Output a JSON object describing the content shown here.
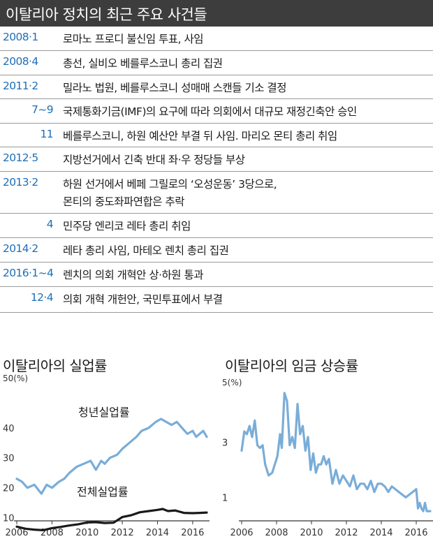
{
  "header": {
    "title": "이탈리아 정치의 최근 주요 사건들"
  },
  "timeline": [
    {
      "date": "2008·1",
      "indent": false,
      "lines": [
        "로마노 프로디 불신임 투표, 사임"
      ]
    },
    {
      "date": "2008·4",
      "indent": false,
      "lines": [
        "총선, 실비오 베를루스코니 총리 집권"
      ]
    },
    {
      "date": "2011·2",
      "indent": false,
      "lines": [
        "밀라노 법원, 베를루스코니 성매매 스캔들 기소 결정"
      ]
    },
    {
      "date": "7~9",
      "indent": true,
      "lines": [
        "국제통화기금(IMF)의 요구에 따라 의회에서 대규모 재정긴축안 승인"
      ]
    },
    {
      "date": "11",
      "indent": true,
      "lines": [
        "베를루스코니, 하원 예산안 부결 뒤 사임. 마리오 몬티 총리 취임"
      ]
    },
    {
      "date": "2012·5",
      "indent": false,
      "lines": [
        "지방선거에서 긴축 반대 좌·우 정당들 부상"
      ]
    },
    {
      "date": "2013·2",
      "indent": false,
      "lines": [
        "하원 선거에서 베페 그릴로의 ‘오성운동’ 3당으로,",
        "몬티의 중도좌파연합은 추락"
      ]
    },
    {
      "date": "4",
      "indent": true,
      "lines": [
        "민주당 엔리코 레타 총리 취임"
      ]
    },
    {
      "date": "2014·2",
      "indent": false,
      "lines": [
        "레타 총리 사임, 마테오 렌치 총리 집권"
      ]
    },
    {
      "date": "2016·1~4",
      "indent": false,
      "lines": [
        "렌치의 의회 개혁안 상·하원 통과"
      ]
    },
    {
      "date": "12·4",
      "indent": true,
      "lines": [
        "의회 개혁 개헌안, 국민투표에서 부결"
      ]
    }
  ],
  "colors": {
    "header_bg": "#3d3d3d",
    "date": "#1e6fb8",
    "youth_line": "#7aadd8",
    "total_line": "#1a1a1a",
    "wage_line": "#7aadd8"
  },
  "chart_data": [
    {
      "type": "line",
      "title": "이탈리아의 실업률",
      "y_unit": "50(%)",
      "ylim": [
        8,
        50
      ],
      "yticks": [
        10,
        20,
        30,
        40
      ],
      "xticks": [
        "2006",
        "2008",
        "2010",
        "2012",
        "2014",
        "2016"
      ],
      "xlim": [
        2006,
        2016.8
      ],
      "series": [
        {
          "name": "청년실업률",
          "x": [
            2006,
            2006.3,
            2006.6,
            2007,
            2007.4,
            2007.7,
            2008,
            2008.4,
            2008.7,
            2009,
            2009.4,
            2009.8,
            2010.2,
            2010.5,
            2010.8,
            2011,
            2011.3,
            2011.7,
            2012,
            2012.4,
            2012.8,
            2013.1,
            2013.5,
            2013.9,
            2014.2,
            2014.5,
            2014.8,
            2015.1,
            2015.4,
            2015.7,
            2016,
            2016.2,
            2016.4,
            2016.6,
            2016.8
          ],
          "values": [
            23,
            22,
            20,
            21,
            18,
            21,
            20,
            22,
            23,
            25,
            27,
            28,
            29,
            26,
            29,
            28,
            30,
            31,
            33,
            35,
            37,
            39,
            40,
            42,
            43,
            42,
            41,
            42,
            40,
            38,
            39,
            37,
            38,
            39,
            37
          ]
        },
        {
          "name": "전체실업률",
          "x": [
            2006,
            2006.5,
            2007,
            2007.5,
            2008,
            2008.5,
            2009,
            2009.5,
            2010,
            2010.5,
            2011,
            2011.5,
            2012,
            2012.5,
            2013,
            2013.5,
            2014,
            2014.3,
            2014.6,
            2015,
            2015.5,
            2016,
            2016.4,
            2016.8
          ],
          "values": [
            7,
            6.3,
            6,
            5.8,
            6.5,
            6.9,
            7.4,
            7.8,
            8.4,
            8.5,
            8.2,
            8.3,
            10.2,
            10.8,
            11.8,
            12.2,
            12.6,
            12.9,
            12.2,
            12.4,
            11.6,
            11.5,
            11.6,
            11.7
          ]
        }
      ]
    },
    {
      "type": "line",
      "title": "이탈리아의 임금 상승률",
      "y_unit": "5(%)",
      "ylim": [
        0.3,
        5
      ],
      "yticks": [
        1,
        3
      ],
      "xticks": [
        "2006",
        "2008",
        "2010",
        "2012",
        "2014",
        "2016"
      ],
      "xlim": [
        2006,
        2016.8
      ],
      "series": [
        {
          "name": "",
          "x": [
            2006,
            2006.15,
            2006.3,
            2006.45,
            2006.6,
            2006.75,
            2006.9,
            2007.05,
            2007.2,
            2007.35,
            2007.55,
            2007.75,
            2007.9,
            2008.05,
            2008.2,
            2008.3,
            2008.45,
            2008.6,
            2008.75,
            2008.9,
            2009.05,
            2009.2,
            2009.35,
            2009.5,
            2009.65,
            2009.8,
            2009.95,
            2010.1,
            2010.25,
            2010.4,
            2010.55,
            2010.7,
            2010.85,
            2011,
            2011.2,
            2011.4,
            2011.6,
            2011.8,
            2012,
            2012.2,
            2012.4,
            2012.6,
            2012.8,
            2013,
            2013.2,
            2013.4,
            2013.6,
            2013.8,
            2014,
            2014.2,
            2014.4,
            2014.6,
            2014.8,
            2015,
            2015.2,
            2015.4,
            2015.6,
            2015.8,
            2016,
            2016.1,
            2016.2,
            2016.3,
            2016.4,
            2016.5,
            2016.6,
            2016.8
          ],
          "values": [
            2.7,
            3.4,
            3.3,
            3.6,
            3.2,
            3.8,
            2.9,
            2.8,
            2.9,
            2.2,
            1.8,
            1.9,
            2.2,
            2.5,
            3.3,
            2.8,
            4.8,
            4.5,
            2.9,
            3.2,
            2.8,
            4.4,
            3.3,
            3.6,
            2.7,
            3.2,
            2.0,
            2.6,
            1.9,
            2.2,
            2.2,
            2.5,
            2.2,
            2.4,
            1.5,
            2.0,
            1.5,
            1.8,
            1.6,
            1.4,
            1.8,
            1.3,
            1.5,
            1.5,
            1.3,
            1.6,
            1.2,
            1.5,
            1.5,
            1.4,
            1.2,
            1.4,
            1.3,
            1.2,
            1.1,
            1.0,
            1.1,
            1.2,
            1.3,
            0.6,
            0.8,
            0.6,
            0.5,
            0.8,
            0.5,
            0.5
          ]
        }
      ]
    }
  ]
}
